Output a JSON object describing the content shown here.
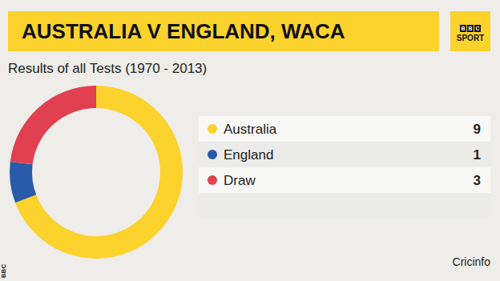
{
  "chart_data": {
    "type": "pie",
    "title": "AUSTRALIA V ENGLAND, WACA",
    "subtitle": "Results of all Tests (1970 - 2013)",
    "categories": [
      "Australia",
      "England",
      "Draw"
    ],
    "values": [
      9,
      1,
      3
    ],
    "colors": [
      "#fcd22d",
      "#2a5ba8",
      "#e0404f"
    ],
    "legend": "right",
    "logo": "BBC SPORT",
    "source": "Cricinfo",
    "credit": "BBC"
  }
}
